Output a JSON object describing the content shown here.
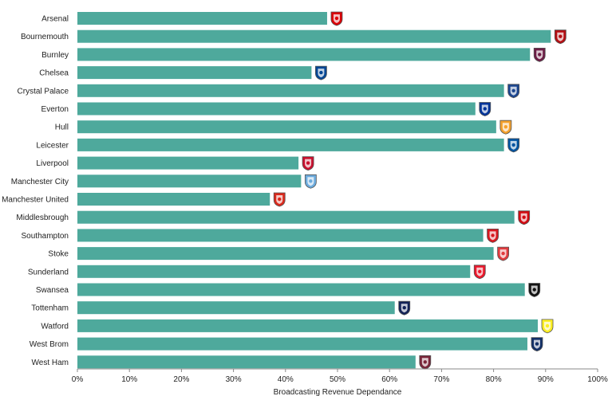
{
  "chart_data": {
    "type": "bar",
    "orientation": "horizontal",
    "title": "",
    "xlabel": "Broadcasting Revenue Dependance",
    "ylabel": "",
    "xlim": [
      0,
      100
    ],
    "x_ticks": [
      "0%",
      "10%",
      "20%",
      "30%",
      "40%",
      "50%",
      "60%",
      "70%",
      "80%",
      "90%",
      "100%"
    ],
    "grid": false,
    "bar_color": "#4ea99c",
    "categories": [
      "Arsenal",
      "Bournemouth",
      "Burnley",
      "Chelsea",
      "Crystal Palace",
      "Everton",
      "Hull",
      "Leicester",
      "Liverpool",
      "Manchester City",
      "Manchester United",
      "Middlesbrough",
      "Southampton",
      "Stoke",
      "Sunderland",
      "Swansea",
      "Tottenham",
      "Watford",
      "West Brom",
      "West Ham"
    ],
    "values": [
      48,
      91,
      87,
      45,
      82,
      76.5,
      80.5,
      82,
      42.5,
      43,
      37,
      84,
      78,
      80,
      75.5,
      86,
      61,
      88.5,
      86.5,
      65
    ],
    "badges": [
      {
        "club": "Arsenal",
        "icon": "arsenal-crest-icon",
        "color": "#db0007"
      },
      {
        "club": "Bournemouth",
        "icon": "bournemouth-crest-icon",
        "color": "#b50e12"
      },
      {
        "club": "Burnley",
        "icon": "burnley-crest-icon",
        "color": "#6c1d45"
      },
      {
        "club": "Chelsea",
        "icon": "chelsea-crest-icon",
        "color": "#034694"
      },
      {
        "club": "Crystal Palace",
        "icon": "crystal-palace-crest-icon",
        "color": "#1b458f"
      },
      {
        "club": "Everton",
        "icon": "everton-crest-icon",
        "color": "#003399"
      },
      {
        "club": "Hull",
        "icon": "hull-crest-icon",
        "color": "#f5a12d"
      },
      {
        "club": "Leicester",
        "icon": "leicester-crest-icon",
        "color": "#0053a0"
      },
      {
        "club": "Liverpool",
        "icon": "liverpool-crest-icon",
        "color": "#c8102e"
      },
      {
        "club": "Manchester City",
        "icon": "manchester-city-crest-icon",
        "color": "#6cabdd"
      },
      {
        "club": "Manchester United",
        "icon": "manchester-united-crest-icon",
        "color": "#da291c"
      },
      {
        "club": "Middlesbrough",
        "icon": "middlesbrough-crest-icon",
        "color": "#d20a11"
      },
      {
        "club": "Southampton",
        "icon": "southampton-crest-icon",
        "color": "#d71920"
      },
      {
        "club": "Stoke",
        "icon": "stoke-crest-icon",
        "color": "#e03a3e"
      },
      {
        "club": "Sunderland",
        "icon": "sunderland-crest-icon",
        "color": "#eb172b"
      },
      {
        "club": "Swansea",
        "icon": "swansea-crest-icon",
        "color": "#121212"
      },
      {
        "club": "Tottenham",
        "icon": "tottenham-crest-icon",
        "color": "#132257"
      },
      {
        "club": "Watford",
        "icon": "watford-crest-icon",
        "color": "#fbee23"
      },
      {
        "club": "West Brom",
        "icon": "west-brom-crest-icon",
        "color": "#122f67"
      },
      {
        "club": "West Ham",
        "icon": "west-ham-crest-icon",
        "color": "#7a263a"
      }
    ]
  }
}
